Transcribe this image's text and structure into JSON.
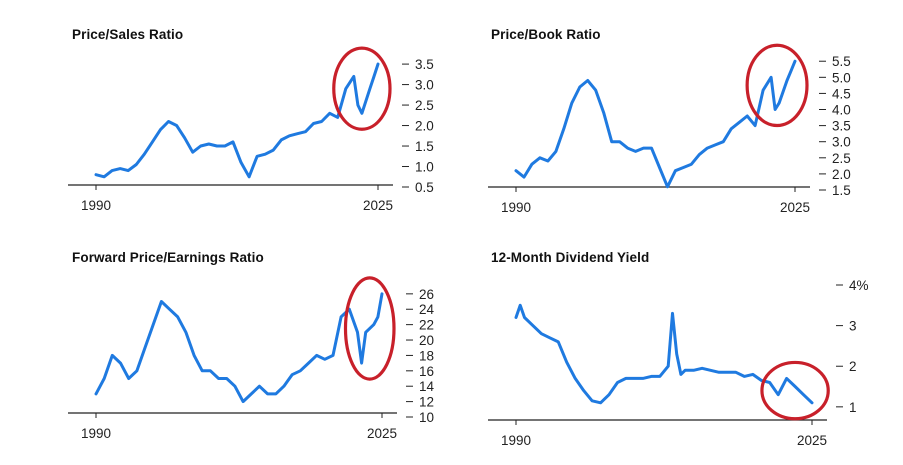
{
  "colors": {
    "series": "#1f7ae0",
    "highlight": "#c8202a",
    "axis": "#222222"
  },
  "chart_data": [
    {
      "type": "line",
      "title": "Price/Sales Ratio",
      "x_start_label": "1990",
      "x_end_label": "2025",
      "xlim": [
        1990,
        2025
      ],
      "ylim": [
        0.5,
        3.6
      ],
      "y_ticks": [
        0.5,
        1.0,
        1.5,
        2.0,
        2.5,
        3.0,
        3.5
      ],
      "y_tick_labels": [
        "0.5",
        "1.0",
        "1.5",
        "2.0",
        "2.5",
        "3.0",
        "3.5"
      ],
      "highlight_window": [
        2021.0,
        2025.0
      ],
      "series": [
        {
          "name": "Price/Sales Ratio",
          "x": [
            1990,
            1991,
            1992,
            1993,
            1994,
            1995,
            1996,
            1997,
            1998,
            1999,
            2000,
            2001,
            2002,
            2003,
            2004,
            2005,
            2006,
            2007,
            2008,
            2009,
            2010,
            2011,
            2012,
            2013,
            2014,
            2015,
            2016,
            2017,
            2018,
            2019,
            2020,
            2021,
            2022,
            2022.5,
            2023,
            2024,
            2024.5,
            2025
          ],
          "values": [
            0.8,
            0.75,
            0.9,
            0.95,
            0.9,
            1.05,
            1.3,
            1.6,
            1.9,
            2.1,
            2.0,
            1.7,
            1.35,
            1.5,
            1.55,
            1.5,
            1.5,
            1.6,
            1.1,
            0.75,
            1.25,
            1.3,
            1.4,
            1.65,
            1.75,
            1.8,
            1.85,
            2.05,
            2.1,
            2.3,
            2.2,
            2.9,
            3.2,
            2.5,
            2.3,
            2.9,
            3.2,
            3.5
          ]
        }
      ]
    },
    {
      "type": "line",
      "title": "Price/Book Ratio",
      "x_start_label": "1990",
      "x_end_label": "2025",
      "xlim": [
        1990,
        2025
      ],
      "ylim": [
        1.5,
        5.6
      ],
      "y_ticks": [
        1.5,
        2.0,
        2.5,
        3.0,
        3.5,
        4.0,
        4.5,
        5.0,
        5.5
      ],
      "y_tick_labels": [
        "1.5",
        "2.0",
        "2.5",
        "3.0",
        "3.5",
        "4.0",
        "4.5",
        "5.0",
        "5.5"
      ],
      "highlight_window": [
        2020.5,
        2025.0
      ],
      "series": [
        {
          "name": "Price/Book Ratio",
          "x": [
            1990,
            1991,
            1992,
            1993,
            1994,
            1995,
            1996,
            1997,
            1998,
            1999,
            2000,
            2001,
            2002,
            2003,
            2004,
            2005,
            2006,
            2007,
            2008,
            2009,
            2010,
            2011,
            2012,
            2013,
            2014,
            2015,
            2016,
            2017,
            2018,
            2019,
            2020,
            2021,
            2022,
            2022.5,
            2023,
            2024,
            2024.5,
            2025
          ],
          "values": [
            2.1,
            1.9,
            2.3,
            2.5,
            2.4,
            2.7,
            3.4,
            4.2,
            4.7,
            4.9,
            4.6,
            3.9,
            3.0,
            3.0,
            2.8,
            2.7,
            2.8,
            2.8,
            2.2,
            1.6,
            2.1,
            2.2,
            2.3,
            2.6,
            2.8,
            2.9,
            3.0,
            3.4,
            3.6,
            3.8,
            3.5,
            4.6,
            5.0,
            4.0,
            4.2,
            4.9,
            5.2,
            5.5
          ]
        }
      ]
    },
    {
      "type": "line",
      "title": "Forward Price/Earnings Ratio",
      "x_start_label": "1990",
      "x_end_label": "2025",
      "xlim": [
        1990,
        2025
      ],
      "ylim": [
        10,
        26.5
      ],
      "y_ticks": [
        10,
        12,
        14,
        16,
        18,
        20,
        22,
        24,
        26
      ],
      "y_tick_labels": [
        "10",
        "12",
        "14",
        "16",
        "18",
        "20",
        "22",
        "24",
        "26"
      ],
      "highlight_window": [
        2022.0,
        2025.0
      ],
      "series": [
        {
          "name": "Forward Price/Earnings Ratio",
          "x": [
            1990,
            1991,
            1992,
            1993,
            1994,
            1995,
            1996,
            1997,
            1998,
            1999,
            2000,
            2001,
            2002,
            2003,
            2004,
            2005,
            2006,
            2007,
            2008,
            2009,
            2010,
            2011,
            2012,
            2013,
            2014,
            2015,
            2016,
            2017,
            2018,
            2019,
            2020,
            2021,
            2022,
            2022.5,
            2023,
            2024,
            2024.5,
            2025
          ],
          "values": [
            13,
            15,
            18,
            17,
            15,
            16,
            19,
            22,
            25,
            24,
            23,
            21,
            18,
            16,
            16,
            15,
            15,
            14,
            12,
            13,
            14,
            13,
            13,
            14,
            15.5,
            16,
            17,
            18,
            17.5,
            18,
            23,
            24,
            21,
            17,
            21,
            22,
            23,
            26
          ]
        }
      ]
    },
    {
      "type": "line",
      "title": "12-Month Dividend Yield",
      "x_start_label": "1990",
      "x_end_label": "2025",
      "xlim": [
        1990,
        2025
      ],
      "ylim": [
        0.75,
        4.0
      ],
      "y_ticks": [
        1,
        2,
        3,
        4
      ],
      "y_tick_labels": [
        "1",
        "2",
        "3",
        "4%"
      ],
      "highlight_window": [
        2020.5,
        2025.5
      ],
      "series": [
        {
          "name": "12-Month Dividend Yield",
          "x": [
            1990,
            1990.5,
            1991,
            1992,
            1993,
            1994,
            1995,
            1996,
            1997,
            1998,
            1999,
            2000,
            2001,
            2002,
            2003,
            2004,
            2005,
            2006,
            2007,
            2008,
            2008.5,
            2009,
            2009.5,
            2010,
            2011,
            2012,
            2013,
            2014,
            2015,
            2016,
            2017,
            2018,
            2019,
            2020,
            2021,
            2022,
            2023,
            2024,
            2025
          ],
          "values": [
            3.2,
            3.5,
            3.2,
            3.0,
            2.8,
            2.7,
            2.6,
            2.1,
            1.7,
            1.4,
            1.15,
            1.1,
            1.3,
            1.6,
            1.7,
            1.7,
            1.7,
            1.75,
            1.75,
            2.0,
            3.3,
            2.3,
            1.8,
            1.9,
            1.9,
            1.95,
            1.9,
            1.85,
            1.85,
            1.85,
            1.75,
            1.8,
            1.65,
            1.6,
            1.3,
            1.7,
            1.5,
            1.3,
            1.1
          ]
        }
      ]
    }
  ]
}
